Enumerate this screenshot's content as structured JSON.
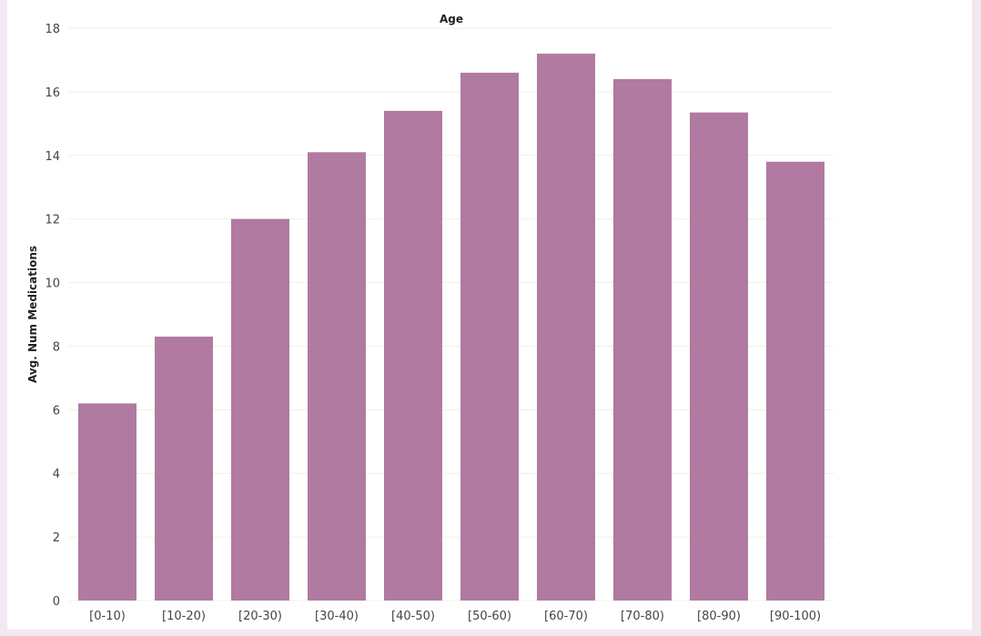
{
  "chart_data": {
    "type": "bar",
    "title": "Age",
    "xlabel": "",
    "ylabel": "Avg. Num Medications",
    "categories": [
      "[0-10)",
      "[10-20)",
      "[20-30)",
      "[30-40)",
      "[40-50)",
      "[50-60)",
      "[60-70)",
      "[70-80)",
      "[80-90)",
      "[90-100)"
    ],
    "values": [
      6.2,
      8.3,
      12.0,
      14.1,
      15.4,
      16.6,
      17.2,
      16.4,
      15.35,
      13.8
    ],
    "ylim": [
      0,
      18
    ],
    "yticks": [
      0,
      2,
      4,
      6,
      8,
      10,
      12,
      14,
      16,
      18
    ],
    "grid": true,
    "bar_color": "#b07aa1",
    "grid_color": "#f2f0dc",
    "background": "#ffffff"
  }
}
